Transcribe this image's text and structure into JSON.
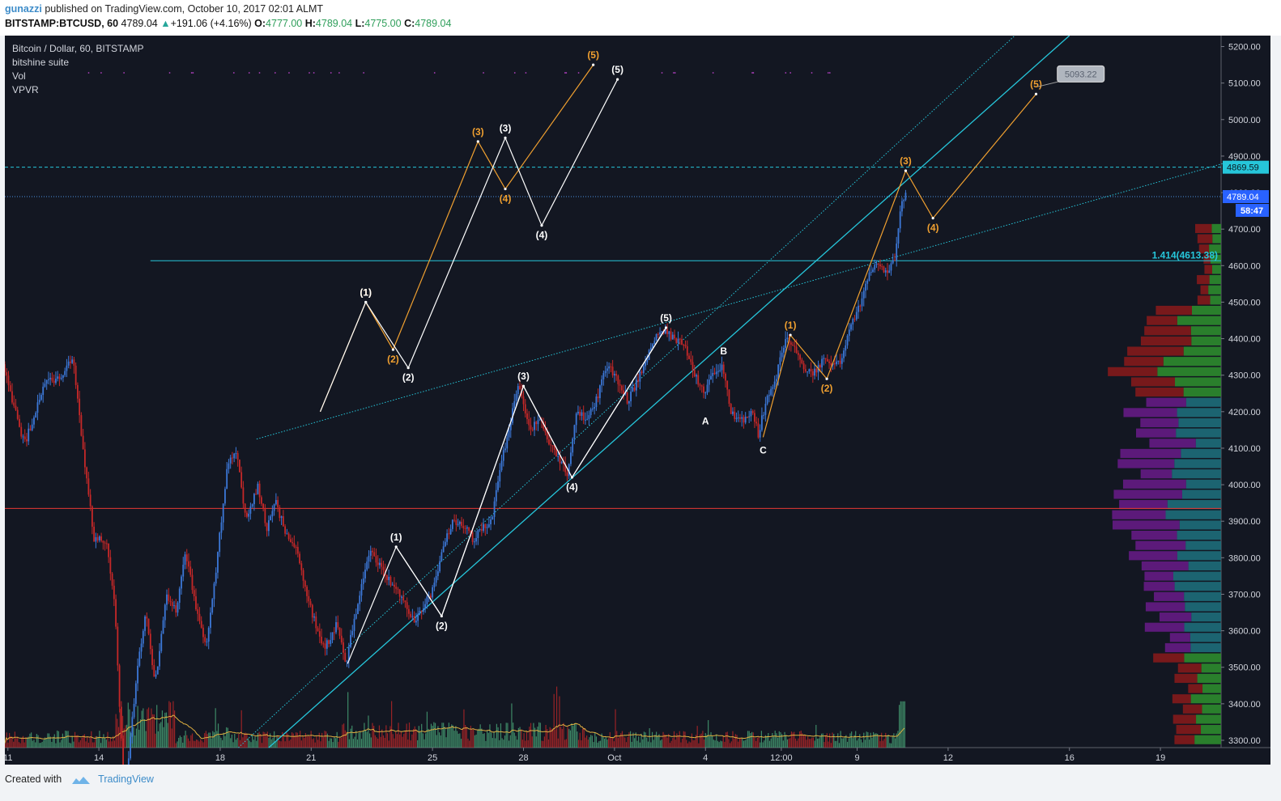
{
  "header": {
    "user": "gunazzi",
    "published": "published on TradingView.com, October 10, 2017 02:01 ALMT",
    "symbol": "BITSTAMP:BTCUSD, 60",
    "last": "4789.04",
    "change": "+191.06 (+4.16%)",
    "o_label": "O:",
    "o": "4777.00",
    "h_label": "H:",
    "h": "4789.04",
    "l_label": "L:",
    "l": "4775.00",
    "c_label": "C:",
    "c": "4789.04"
  },
  "legend": {
    "title": "Bitcoin / Dollar, 60, BITSTAMP",
    "ind1": "bitshine suite",
    "ind2": "Vol",
    "ind3": "VPVR"
  },
  "footer": {
    "created": "Created with",
    "brand": "TradingView"
  },
  "colors": {
    "background": "#131722",
    "up": "#3c78d8",
    "down": "#c62828",
    "cyan": "#26c6da",
    "orange": "#f0a030",
    "white": "#ffffff",
    "red_line": "#e53935"
  },
  "chart_data": {
    "type": "candlestick",
    "ylim": [
      3280,
      5230
    ],
    "y_ticks": [
      5200,
      5100,
      5000,
      4900,
      4800,
      4700,
      4600,
      4500,
      4400,
      4300,
      4200,
      4100,
      4000,
      3900,
      3800,
      3700,
      3600,
      3500,
      3400,
      3300
    ],
    "y_tick_labels": [
      "5200.00",
      "5100.00",
      "5000.00",
      "4900.00",
      "4800.00",
      "4700.00",
      "4600.00",
      "4500.00",
      "4400.00",
      "4300.00",
      "4200.00",
      "4100.00",
      "4000.00",
      "3900.00",
      "3800.00",
      "3700.00",
      "3600.00",
      "3500.00",
      "3400.00",
      "3300.00"
    ],
    "x_ticks": [
      "11",
      "14",
      "18",
      "21",
      "25",
      "28",
      "Oct",
      "4",
      "12:00",
      "9",
      "12",
      "16",
      "19"
    ],
    "x_tick_days": [
      11,
      14,
      18,
      21,
      25,
      28,
      31,
      34,
      36.5,
      39,
      42,
      46,
      49
    ],
    "x_range_days": [
      10.9,
      51
    ],
    "price_path": [
      [
        10.9,
        4330
      ],
      [
        11.6,
        4110
      ],
      [
        12.3,
        4280
      ],
      [
        12.9,
        4300
      ],
      [
        13.2,
        4350
      ],
      [
        13.5,
        4120
      ],
      [
        13.9,
        3850
      ],
      [
        14.3,
        3850
      ],
      [
        14.6,
        3650
      ],
      [
        14.9,
        3120
      ],
      [
        15.3,
        3480
      ],
      [
        15.6,
        3650
      ],
      [
        15.9,
        3450
      ],
      [
        16.3,
        3700
      ],
      [
        16.6,
        3650
      ],
      [
        16.9,
        3820
      ],
      [
        17.3,
        3650
      ],
      [
        17.6,
        3550
      ],
      [
        17.9,
        3750
      ],
      [
        18.3,
        4060
      ],
      [
        18.6,
        4100
      ],
      [
        18.9,
        3900
      ],
      [
        19.3,
        4000
      ],
      [
        19.6,
        3880
      ],
      [
        19.9,
        3950
      ],
      [
        20.3,
        3850
      ],
      [
        20.6,
        3820
      ],
      [
        20.9,
        3700
      ],
      [
        21.2,
        3620
      ],
      [
        21.5,
        3550
      ],
      [
        21.9,
        3620
      ],
      [
        22.2,
        3510
      ],
      [
        22.5,
        3640
      ],
      [
        23.0,
        3820
      ],
      [
        23.5,
        3750
      ],
      [
        24.0,
        3700
      ],
      [
        24.5,
        3620
      ],
      [
        24.7,
        3660
      ],
      [
        25.0,
        3700
      ],
      [
        25.4,
        3820
      ],
      [
        25.7,
        3900
      ],
      [
        26.0,
        3900
      ],
      [
        26.4,
        3850
      ],
      [
        26.7,
        3880
      ],
      [
        27.0,
        3900
      ],
      [
        27.3,
        4050
      ],
      [
        27.7,
        4200
      ],
      [
        27.9,
        4270
      ],
      [
        28.3,
        4150
      ],
      [
        28.6,
        4180
      ],
      [
        29.0,
        4100
      ],
      [
        29.5,
        4030
      ],
      [
        29.8,
        4200
      ],
      [
        30.2,
        4180
      ],
      [
        30.5,
        4240
      ],
      [
        30.8,
        4330
      ],
      [
        31.2,
        4280
      ],
      [
        31.5,
        4230
      ],
      [
        31.8,
        4280
      ],
      [
        32.2,
        4360
      ],
      [
        32.6,
        4430
      ],
      [
        33.0,
        4400
      ],
      [
        33.4,
        4380
      ],
      [
        33.7,
        4300
      ],
      [
        34.0,
        4250
      ],
      [
        34.3,
        4300
      ],
      [
        34.6,
        4330
      ],
      [
        34.9,
        4200
      ],
      [
        35.2,
        4170
      ],
      [
        35.6,
        4200
      ],
      [
        35.8,
        4140
      ],
      [
        36.1,
        4240
      ],
      [
        36.4,
        4300
      ],
      [
        36.7,
        4400
      ],
      [
        37.0,
        4380
      ],
      [
        37.3,
        4320
      ],
      [
        37.6,
        4300
      ],
      [
        37.9,
        4340
      ],
      [
        38.2,
        4330
      ],
      [
        38.5,
        4330
      ],
      [
        38.8,
        4430
      ],
      [
        39.1,
        4480
      ],
      [
        39.4,
        4570
      ],
      [
        39.7,
        4600
      ],
      [
        40.0,
        4580
      ],
      [
        40.3,
        4620
      ],
      [
        40.5,
        4760
      ],
      [
        40.6,
        4789
      ]
    ],
    "overlays": {
      "red_support": 3935,
      "cyan_dashed": 4869.59,
      "blue_dotted_last": 4789.04,
      "fib_level": 4613.38,
      "fib_label": "1.414(4613.38)",
      "price_tag": "4789.04",
      "resistance_tag": "4869.59",
      "timer_tag": "58:47",
      "callout": "5093.22"
    },
    "wave_labels": {
      "white_main": [
        [
          "(1)",
          23.8,
          3830
        ],
        [
          "(2)",
          25.3,
          3640
        ],
        [
          "(3)",
          28.0,
          4270
        ],
        [
          "(4)",
          29.6,
          4020
        ],
        [
          "(5)",
          32.7,
          4430
        ]
      ],
      "white_corr": [
        [
          "A",
          34.0,
          4210
        ],
        [
          "B",
          34.6,
          4330
        ],
        [
          "C",
          35.9,
          4130
        ]
      ],
      "white_proj": [
        [
          "(1)",
          22.8,
          4500
        ],
        [
          "(2)",
          24.2,
          4320
        ],
        [
          "(3)",
          27.4,
          4950
        ],
        [
          "(4)",
          28.6,
          4710
        ],
        [
          "(5)",
          31.1,
          5110
        ]
      ],
      "orange_proj": [
        [
          "(1)",
          22.8,
          4500
        ],
        [
          "(2)",
          23.7,
          4370
        ],
        [
          "(3)",
          26.5,
          4940
        ],
        [
          "(4)",
          27.4,
          4810
        ],
        [
          "(5)",
          30.3,
          5150
        ]
      ],
      "orange_main": [
        [
          "(1)",
          36.8,
          4410
        ],
        [
          "(2)",
          38.0,
          4290
        ],
        [
          "(3)",
          40.6,
          4860
        ],
        [
          "(4)",
          41.5,
          4730
        ],
        [
          "(5)",
          44.9,
          5070
        ]
      ]
    }
  }
}
